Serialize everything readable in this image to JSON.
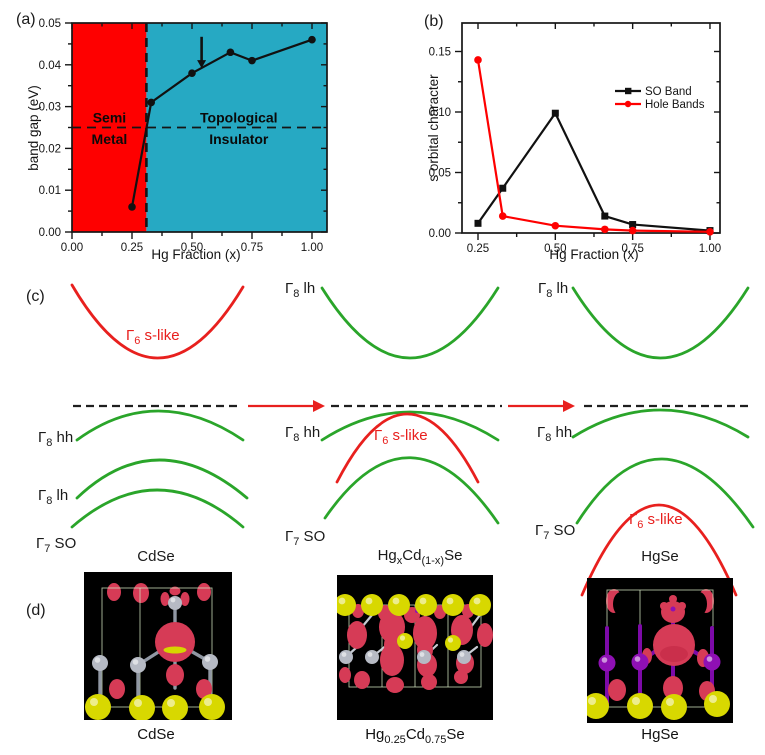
{
  "palette": {
    "semimetal_red": "#fe0000",
    "topological_cyan": "#26a9c3",
    "band_red": "#e8201e",
    "band_green": "#2aa52a",
    "axis_black": "#151515"
  },
  "panel_a": {
    "tag": "(a)"
  },
  "panel_b": {
    "tag": "(b)"
  },
  "panel_c": {
    "tag": "(c)",
    "columns": [
      {
        "title": [
          {
            "t": "CdSe"
          }
        ],
        "labels": [
          [
            {
              "t": "Γ"
            },
            {
              "t": "6",
              "sub": true
            },
            {
              "t": " s-like"
            }
          ],
          [
            {
              "t": "Γ"
            },
            {
              "t": "8",
              "sub": true
            },
            {
              "t": " hh"
            }
          ],
          [
            {
              "t": "Γ"
            },
            {
              "t": "8",
              "sub": true
            },
            {
              "t": " lh"
            }
          ],
          [
            {
              "t": "Γ"
            },
            {
              "t": "7",
              "sub": true
            },
            {
              "t": " SO"
            }
          ]
        ]
      },
      {
        "title": [
          {
            "t": "Hg"
          },
          {
            "t": "x",
            "sub": true
          },
          {
            "t": "Cd"
          },
          {
            "t": "(1-x)",
            "sub": true
          },
          {
            "t": "Se"
          }
        ],
        "labels": [
          [
            {
              "t": "Γ"
            },
            {
              "t": "8",
              "sub": true
            },
            {
              "t": " lh"
            }
          ],
          [
            {
              "t": "Γ"
            },
            {
              "t": "8",
              "sub": true
            },
            {
              "t": " hh"
            }
          ],
          [
            {
              "t": "Γ"
            },
            {
              "t": "6",
              "sub": true
            },
            {
              "t": " s-like"
            }
          ],
          [
            {
              "t": "Γ"
            },
            {
              "t": "7",
              "sub": true
            },
            {
              "t": " SO"
            }
          ]
        ]
      },
      {
        "title": [
          {
            "t": "HgSe"
          }
        ],
        "labels": [
          [
            {
              "t": "Γ"
            },
            {
              "t": "8",
              "sub": true
            },
            {
              "t": " lh"
            }
          ],
          [
            {
              "t": "Γ"
            },
            {
              "t": "8",
              "sub": true
            },
            {
              "t": " hh"
            }
          ],
          [
            {
              "t": "Γ"
            },
            {
              "t": "7",
              "sub": true
            },
            {
              "t": " SO"
            }
          ],
          [
            {
              "t": "Γ"
            },
            {
              "t": "6",
              "sub": true
            },
            {
              "t": " s-like"
            }
          ]
        ]
      }
    ]
  },
  "panel_d": {
    "tag": "(d)",
    "items": [
      {
        "caption": [
          {
            "t": "CdSe"
          }
        ]
      },
      {
        "caption": [
          {
            "t": "Hg"
          },
          {
            "t": "0.25",
            "sub": true
          },
          {
            "t": "Cd"
          },
          {
            "t": "0.75",
            "sub": true
          },
          {
            "t": "Se"
          }
        ]
      },
      {
        "caption": [
          {
            "t": "HgSe"
          }
        ]
      }
    ]
  },
  "chart_data": [
    {
      "type": "line",
      "panel": "(a)",
      "xlabel": "Hg Fraction (x)",
      "ylabel": "band gap (eV)",
      "x": [
        0.25,
        0.33,
        0.5,
        0.66,
        0.75,
        1.0
      ],
      "series": [
        {
          "name": "band gap",
          "color": "#111111",
          "marker": "circle",
          "values": [
            0.006,
            0.031,
            0.038,
            0.043,
            0.041,
            0.046
          ]
        }
      ],
      "xlim": [
        0,
        1.0625
      ],
      "ylim": [
        0,
        0.05
      ],
      "x_ticks": [
        0,
        0.25,
        0.5,
        0.75,
        1.0
      ],
      "y_ticks": [
        0,
        0.01,
        0.02,
        0.03,
        0.04,
        0.05
      ],
      "grid": false,
      "regions": [
        {
          "label_lines": [
            "Semi",
            "Metal"
          ],
          "label_x": 0.156,
          "label_y": [
            0.0262,
            0.0211
          ],
          "from": 0,
          "to": 0.31,
          "color": "#fe0000"
        },
        {
          "label_lines": [
            "Topological",
            "Insulator"
          ],
          "label_x": 0.695,
          "label_y": [
            0.0262,
            0.0211
          ],
          "from": 0.31,
          "to": 1.0625,
          "color": "#26a9c3"
        }
      ],
      "annotations": {
        "vline_x": 0.31,
        "hline_y": 0.025,
        "arrow": {
          "x": 0.54,
          "y_from": 0.0467,
          "y_to": 0.0392
        }
      }
    },
    {
      "type": "line",
      "panel": "(b)",
      "xlabel": "Hg Fraction (x)",
      "ylabel": "s orbital character",
      "x": [
        0.25,
        0.33,
        0.5,
        0.66,
        0.75,
        1.0
      ],
      "series": [
        {
          "name": "SO Band",
          "color": "#111111",
          "marker": "square",
          "values": [
            0.008,
            0.037,
            0.099,
            0.014,
            0.007,
            0.002
          ]
        },
        {
          "name": "Hole Bands",
          "color": "#fe0000",
          "marker": "circle",
          "values": [
            0.143,
            0.014,
            0.006,
            0.003,
            0.002,
            0.001
          ]
        }
      ],
      "xlim": [
        0.198,
        1.032
      ],
      "ylim": [
        0,
        0.1735
      ],
      "x_ticks": [
        0.25,
        0.5,
        0.75,
        1.0
      ],
      "y_ticks": [
        0,
        0.05,
        0.1,
        0.15
      ],
      "grid": false,
      "legend_position": "right-center"
    }
  ]
}
